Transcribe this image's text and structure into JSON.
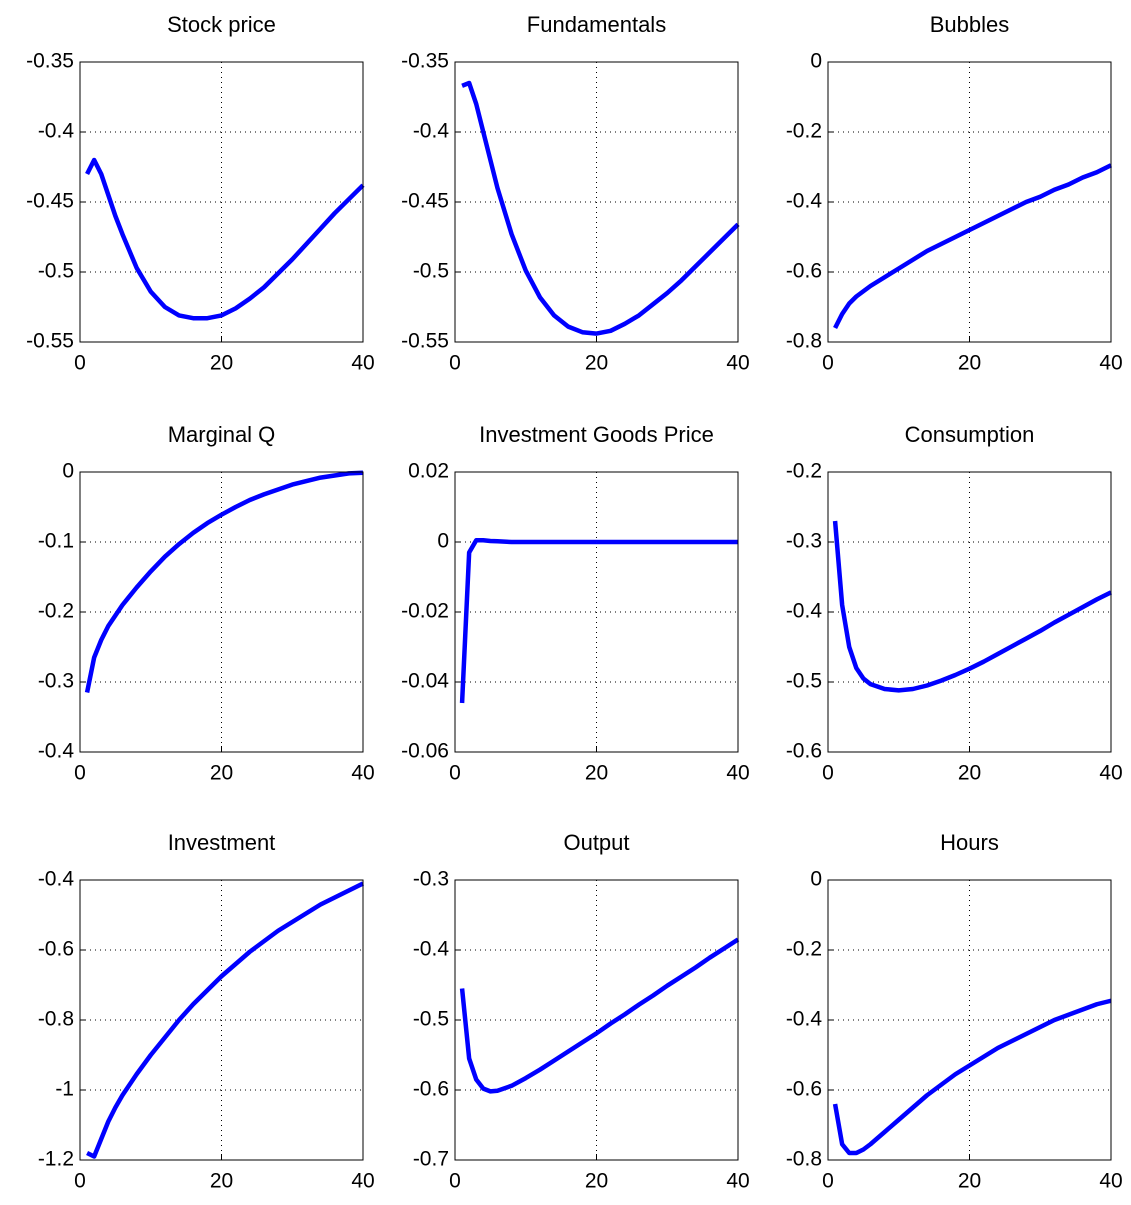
{
  "chart_data": [
    {
      "type": "line",
      "title": "Stock price",
      "color": "#0000ff",
      "grid": true,
      "x": [
        1,
        2,
        3,
        4,
        5,
        6,
        8,
        10,
        12,
        14,
        16,
        18,
        20,
        22,
        24,
        26,
        28,
        30,
        32,
        34,
        36,
        38,
        40
      ],
      "values": [
        -0.43,
        -0.42,
        -0.43,
        -0.445,
        -0.46,
        -0.473,
        -0.497,
        -0.514,
        -0.525,
        -0.531,
        -0.533,
        -0.533,
        -0.531,
        -0.526,
        -0.519,
        -0.511,
        -0.501,
        -0.491,
        -0.48,
        -0.469,
        -0.458,
        -0.448,
        -0.438
      ],
      "xlim": [
        0,
        40
      ],
      "xticks": [
        0,
        20,
        40
      ],
      "ylim": [
        -0.55,
        -0.35
      ],
      "yticks": [
        -0.55,
        -0.5,
        -0.45,
        -0.4,
        -0.35
      ]
    },
    {
      "type": "line",
      "title": "Fundamentals",
      "color": "#0000ff",
      "grid": true,
      "x": [
        1,
        2,
        3,
        4,
        5,
        6,
        8,
        10,
        12,
        14,
        16,
        18,
        20,
        22,
        24,
        26,
        28,
        30,
        32,
        34,
        36,
        38,
        40
      ],
      "values": [
        -0.367,
        -0.365,
        -0.38,
        -0.4,
        -0.42,
        -0.44,
        -0.473,
        -0.499,
        -0.518,
        -0.531,
        -0.539,
        -0.543,
        -0.544,
        -0.542,
        -0.537,
        -0.531,
        -0.523,
        -0.515,
        -0.506,
        -0.496,
        -0.486,
        -0.476,
        -0.466
      ],
      "xlim": [
        0,
        40
      ],
      "xticks": [
        0,
        20,
        40
      ],
      "ylim": [
        -0.55,
        -0.35
      ],
      "yticks": [
        -0.55,
        -0.5,
        -0.45,
        -0.4,
        -0.35
      ]
    },
    {
      "type": "line",
      "title": "Bubbles",
      "color": "#0000ff",
      "grid": true,
      "x": [
        1,
        2,
        3,
        4,
        5,
        6,
        8,
        10,
        12,
        14,
        16,
        18,
        20,
        22,
        24,
        26,
        28,
        30,
        32,
        34,
        36,
        38,
        40
      ],
      "values": [
        -0.76,
        -0.72,
        -0.69,
        -0.67,
        -0.655,
        -0.64,
        -0.615,
        -0.59,
        -0.565,
        -0.54,
        -0.52,
        -0.5,
        -0.48,
        -0.46,
        -0.44,
        -0.42,
        -0.4,
        -0.385,
        -0.365,
        -0.35,
        -0.33,
        -0.315,
        -0.295
      ],
      "xlim": [
        0,
        40
      ],
      "xticks": [
        0,
        20,
        40
      ],
      "ylim": [
        -0.8,
        0
      ],
      "yticks": [
        -0.8,
        -0.6,
        -0.4,
        -0.2,
        0
      ]
    },
    {
      "type": "line",
      "title": "Marginal Q",
      "color": "#0000ff",
      "grid": true,
      "x": [
        1,
        2,
        3,
        4,
        5,
        6,
        8,
        10,
        12,
        14,
        16,
        18,
        20,
        22,
        24,
        26,
        28,
        30,
        32,
        34,
        36,
        38,
        40
      ],
      "values": [
        -0.315,
        -0.265,
        -0.24,
        -0.22,
        -0.205,
        -0.19,
        -0.165,
        -0.142,
        -0.121,
        -0.103,
        -0.087,
        -0.073,
        -0.061,
        -0.05,
        -0.04,
        -0.032,
        -0.025,
        -0.018,
        -0.013,
        -0.008,
        -0.005,
        -0.002,
        -0.001
      ],
      "xlim": [
        0,
        40
      ],
      "xticks": [
        0,
        20,
        40
      ],
      "ylim": [
        -0.4,
        0
      ],
      "yticks": [
        -0.4,
        -0.3,
        -0.2,
        -0.1,
        0
      ]
    },
    {
      "type": "line",
      "title": "Investment Goods Price",
      "color": "#0000ff",
      "grid": true,
      "x": [
        1,
        2,
        3,
        4,
        5,
        6,
        8,
        10,
        12,
        14,
        16,
        18,
        20,
        22,
        24,
        26,
        28,
        30,
        32,
        34,
        36,
        38,
        40
      ],
      "values": [
        -0.046,
        -0.003,
        0.0005,
        0.0005,
        0.0003,
        0.0002,
        0,
        0,
        0,
        0,
        0,
        0,
        0,
        0,
        0,
        0,
        0,
        0,
        0,
        0,
        0,
        0,
        0
      ],
      "xlim": [
        0,
        40
      ],
      "xticks": [
        0,
        20,
        40
      ],
      "ylim": [
        -0.06,
        0.02
      ],
      "yticks": [
        -0.06,
        -0.04,
        -0.02,
        0,
        0.02
      ]
    },
    {
      "type": "line",
      "title": "Consumption",
      "color": "#0000ff",
      "grid": true,
      "x": [
        1,
        2,
        3,
        4,
        5,
        6,
        8,
        10,
        12,
        14,
        16,
        18,
        20,
        22,
        24,
        26,
        28,
        30,
        32,
        34,
        36,
        38,
        40
      ],
      "values": [
        -0.27,
        -0.39,
        -0.45,
        -0.48,
        -0.495,
        -0.503,
        -0.51,
        -0.512,
        -0.51,
        -0.505,
        -0.498,
        -0.49,
        -0.481,
        -0.471,
        -0.46,
        -0.449,
        -0.438,
        -0.427,
        -0.415,
        -0.404,
        -0.393,
        -0.382,
        -0.372
      ],
      "xlim": [
        0,
        40
      ],
      "xticks": [
        0,
        20,
        40
      ],
      "ylim": [
        -0.6,
        -0.2
      ],
      "yticks": [
        -0.6,
        -0.5,
        -0.4,
        -0.3,
        -0.2
      ]
    },
    {
      "type": "line",
      "title": "Investment",
      "color": "#0000ff",
      "grid": true,
      "x": [
        1,
        2,
        3,
        4,
        5,
        6,
        8,
        10,
        12,
        14,
        16,
        18,
        20,
        22,
        24,
        26,
        28,
        30,
        32,
        34,
        36,
        38,
        40
      ],
      "values": [
        -1.18,
        -1.19,
        -1.14,
        -1.09,
        -1.05,
        -1.015,
        -0.955,
        -0.9,
        -0.85,
        -0.8,
        -0.755,
        -0.715,
        -0.675,
        -0.64,
        -0.605,
        -0.575,
        -0.545,
        -0.52,
        -0.495,
        -0.47,
        -0.45,
        -0.43,
        -0.41
      ],
      "xlim": [
        0,
        40
      ],
      "xticks": [
        0,
        20,
        40
      ],
      "ylim": [
        -1.2,
        -0.4
      ],
      "yticks": [
        -1.2,
        -1,
        -0.8,
        -0.6,
        -0.4
      ]
    },
    {
      "type": "line",
      "title": "Output",
      "color": "#0000ff",
      "grid": true,
      "x": [
        1,
        2,
        3,
        4,
        5,
        6,
        8,
        10,
        12,
        14,
        16,
        18,
        20,
        22,
        24,
        26,
        28,
        30,
        32,
        34,
        36,
        38,
        40
      ],
      "values": [
        -0.455,
        -0.555,
        -0.585,
        -0.598,
        -0.602,
        -0.601,
        -0.594,
        -0.583,
        -0.571,
        -0.558,
        -0.545,
        -0.532,
        -0.519,
        -0.505,
        -0.492,
        -0.478,
        -0.465,
        -0.451,
        -0.438,
        -0.425,
        -0.411,
        -0.398,
        -0.385
      ],
      "xlim": [
        0,
        40
      ],
      "xticks": [
        0,
        20,
        40
      ],
      "ylim": [
        -0.7,
        -0.3
      ],
      "yticks": [
        -0.7,
        -0.6,
        -0.5,
        -0.4,
        -0.3
      ]
    },
    {
      "type": "line",
      "title": "Hours",
      "color": "#0000ff",
      "grid": true,
      "x": [
        1,
        2,
        3,
        4,
        5,
        6,
        8,
        10,
        12,
        14,
        16,
        18,
        20,
        22,
        24,
        26,
        28,
        30,
        32,
        34,
        36,
        38,
        40
      ],
      "values": [
        -0.64,
        -0.755,
        -0.78,
        -0.78,
        -0.77,
        -0.755,
        -0.72,
        -0.685,
        -0.65,
        -0.615,
        -0.585,
        -0.555,
        -0.53,
        -0.505,
        -0.48,
        -0.46,
        -0.44,
        -0.42,
        -0.4,
        -0.385,
        -0.37,
        -0.355,
        -0.345
      ],
      "xlim": [
        0,
        40
      ],
      "xticks": [
        0,
        20,
        40
      ],
      "ylim": [
        -0.8,
        0
      ],
      "yticks": [
        -0.8,
        -0.6,
        -0.4,
        -0.2,
        0
      ]
    }
  ]
}
